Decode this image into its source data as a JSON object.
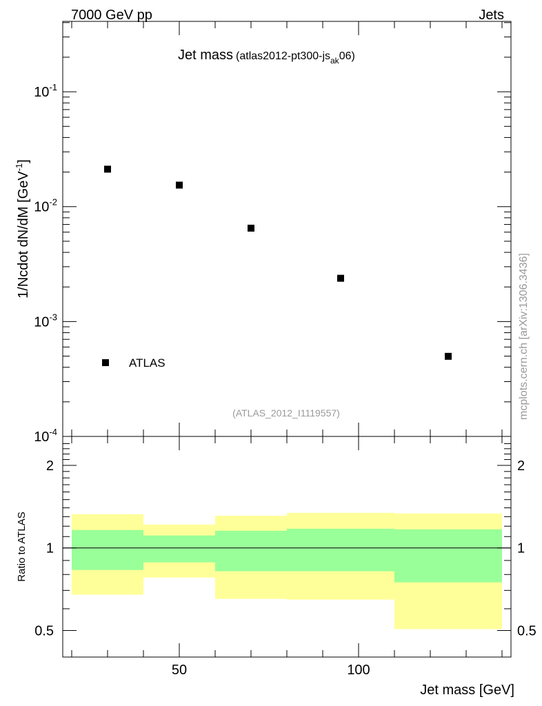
{
  "header": {
    "left": "7000 GeV pp",
    "right": "Jets"
  },
  "side_label": "mcplots.cern.ch [arXiv:1306.3436]",
  "colors": {
    "yellow": "#ffff99",
    "green": "#99ff99",
    "marker": "#000000",
    "watermark": "#999999"
  },
  "chart_data": [
    {
      "type": "scatter",
      "title": "Jet mass",
      "subtitle_main": "(atlas2012-pt300-js",
      "subtitle_sub": "ak",
      "subtitle_end": "06)",
      "ylabel": "1/Ncdot dN/dM [GeV",
      "ylabel_sup": "-1",
      "ylabel_end": "]",
      "yscale": "log",
      "xlim": [
        17.5,
        142.5
      ],
      "ylim": [
        0.0001,
        0.41
      ],
      "yticks": [
        {
          "v": 0.1,
          "exp": "-1"
        },
        {
          "v": 0.01,
          "exp": "-2"
        },
        {
          "v": 0.001,
          "exp": "-3"
        },
        {
          "v": 0.0001,
          "exp": "-4"
        }
      ],
      "tick_base": "10",
      "legend": {
        "label": "ATLAS",
        "placement": "bottom-left"
      },
      "watermark": "(ATLAS_2012_I1119557)",
      "series": [
        {
          "name": "ATLAS",
          "x": [
            30,
            50,
            70,
            95,
            125
          ],
          "y": [
            0.0212,
            0.0154,
            0.0065,
            0.00238,
            0.000498
          ]
        }
      ]
    },
    {
      "type": "area",
      "ylabel": "Ratio to ATLAS",
      "xlabel": "Jet mass [GeV]",
      "yscale": "log",
      "xlim": [
        17.5,
        142.5
      ],
      "ylim": [
        0.4,
        2.55
      ],
      "xticks": [
        {
          "v": 50,
          "label": "50"
        },
        {
          "v": 100,
          "label": "100"
        }
      ],
      "yticks": [
        {
          "v": 0.5,
          "label": "0.5"
        },
        {
          "v": 1,
          "label": "1"
        },
        {
          "v": 2,
          "label": "2"
        }
      ],
      "bins": [
        {
          "lo": 20,
          "hi": 40,
          "yellow": [
            0.675,
            1.327
          ],
          "green": [
            0.831,
            1.162
          ]
        },
        {
          "lo": 40,
          "hi": 60,
          "yellow": [
            0.78,
            1.217
          ],
          "green": [
            0.886,
            1.11
          ]
        },
        {
          "lo": 60,
          "hi": 80,
          "yellow": [
            0.652,
            1.31
          ],
          "green": [
            0.822,
            1.155
          ]
        },
        {
          "lo": 80,
          "hi": 110,
          "yellow": [
            0.648,
            1.342
          ],
          "green": [
            0.822,
            1.175
          ]
        },
        {
          "lo": 110,
          "hi": 140,
          "yellow": [
            0.506,
            1.335
          ],
          "green": [
            0.749,
            1.169
          ]
        }
      ],
      "reference": 1
    }
  ]
}
